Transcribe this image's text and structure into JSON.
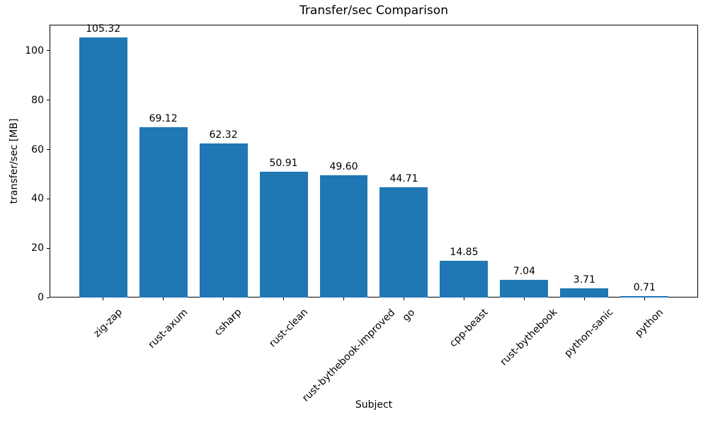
{
  "chart_data": {
    "type": "bar",
    "title": "Transfer/sec Comparison",
    "xlabel": "Subject",
    "ylabel": "transfer/sec [MB]",
    "categories": [
      "zig-zap",
      "rust-axum",
      "csharp",
      "rust-clean",
      "rust-bythebook-improved",
      "go",
      "cpp-beast",
      "rust-bythebook",
      "python-sanic",
      "python"
    ],
    "values": [
      105.32,
      69.12,
      62.32,
      50.91,
      49.6,
      44.71,
      14.85,
      7.04,
      3.71,
      0.71
    ],
    "value_labels": [
      "105.32",
      "69.12",
      "62.32",
      "50.91",
      "49.60",
      "44.71",
      "14.85",
      "7.04",
      "3.71",
      "0.71"
    ],
    "bar_color": "#1f77b4",
    "text_color": "#000000",
    "axis_color": "#000000",
    "ylim": [
      0,
      110.6
    ],
    "yticks": [
      0,
      20,
      40,
      60,
      80,
      100
    ],
    "bar_width": 0.8,
    "x_margin": 0.05,
    "grid": false,
    "legend": "none",
    "x_tick_rotation_deg": 45
  }
}
